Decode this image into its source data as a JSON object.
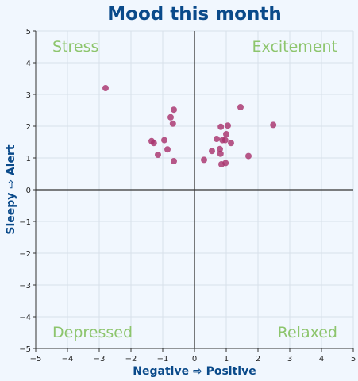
{
  "chart_data": {
    "type": "scatter",
    "title": "Mood this month",
    "xlabel": "Negative ⇨ Positive",
    "ylabel": "Sleepy ⇨ Alert",
    "xlim": [
      -5,
      5
    ],
    "ylim": [
      -5,
      5
    ],
    "xticks": [
      "−5",
      "−4",
      "−3",
      "−2",
      "−1",
      "0",
      "1",
      "2",
      "3",
      "4",
      "5"
    ],
    "yticks": [
      "−5",
      "−4",
      "−3",
      "−2",
      "−1",
      "0",
      "1",
      "2",
      "3",
      "4",
      "5"
    ],
    "grid": true,
    "quadrant_labels": {
      "top_left": "Stress",
      "top_right": "Excitement",
      "bottom_left": "Depressed",
      "bottom_right": "Relaxed"
    },
    "points": [
      {
        "x": -2.8,
        "y": 3.2
      },
      {
        "x": -0.65,
        "y": 2.52
      },
      {
        "x": -0.75,
        "y": 2.28
      },
      {
        "x": -0.68,
        "y": 2.08
      },
      {
        "x": -1.35,
        "y": 1.53
      },
      {
        "x": -1.28,
        "y": 1.47
      },
      {
        "x": -0.95,
        "y": 1.56
      },
      {
        "x": -0.85,
        "y": 1.27
      },
      {
        "x": -1.15,
        "y": 1.1
      },
      {
        "x": -0.65,
        "y": 0.9
      },
      {
        "x": 0.3,
        "y": 0.94
      },
      {
        "x": 0.55,
        "y": 1.22
      },
      {
        "x": 0.7,
        "y": 1.6
      },
      {
        "x": 0.83,
        "y": 1.98
      },
      {
        "x": 1.05,
        "y": 2.02
      },
      {
        "x": 1.45,
        "y": 2.6
      },
      {
        "x": 2.48,
        "y": 2.04
      },
      {
        "x": 1.0,
        "y": 1.75
      },
      {
        "x": 0.88,
        "y": 1.56
      },
      {
        "x": 0.97,
        "y": 1.56
      },
      {
        "x": 1.15,
        "y": 1.47
      },
      {
        "x": 0.8,
        "y": 1.28
      },
      {
        "x": 0.82,
        "y": 1.13
      },
      {
        "x": 1.7,
        "y": 1.06
      },
      {
        "x": 0.85,
        "y": 0.8
      },
      {
        "x": 0.98,
        "y": 0.84
      }
    ],
    "colors": {
      "background": "#f1f7fe",
      "title": "#0a4a8a",
      "axis_label": "#0a4a8a",
      "quadrant_label": "#8dc56d",
      "point": "#a8336e",
      "grid": "#d8e0ea",
      "axis": "#333333"
    }
  }
}
